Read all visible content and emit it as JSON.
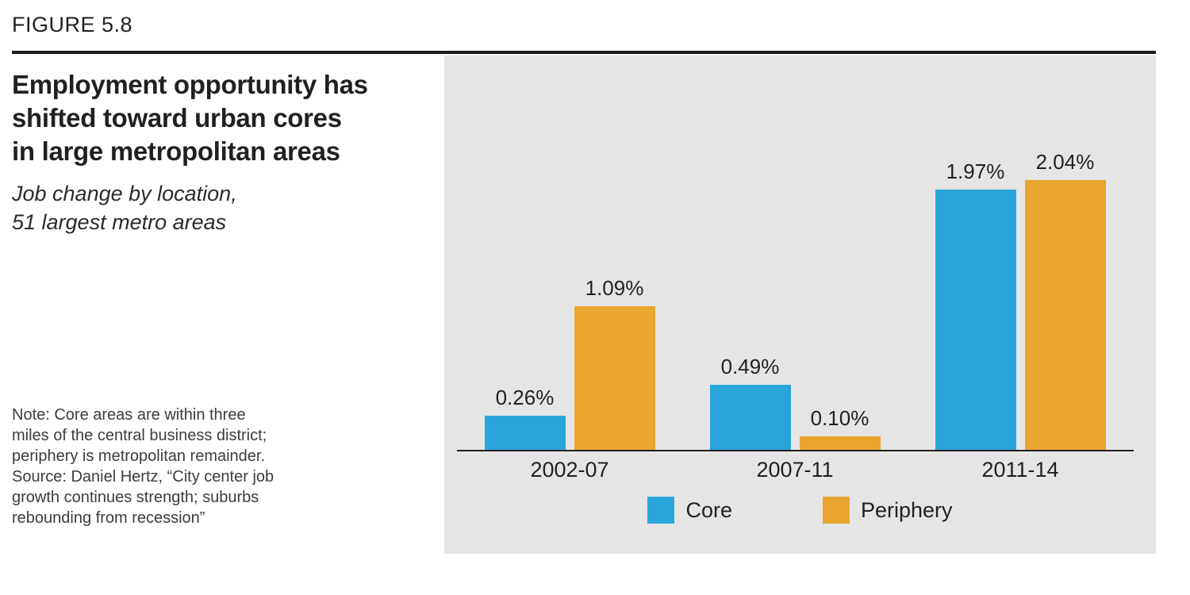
{
  "figure_label": "FIGURE 5.8",
  "title_lines": [
    "Employment opportunity has",
    "shifted toward urban cores",
    "in large metropolitan areas"
  ],
  "subtitle_lines": [
    "Job change by location,",
    "51 largest metro areas"
  ],
  "note_lines": [
    "Note: Core areas are within three",
    "miles of the central business district;",
    "periphery is metropolitan remainder.",
    "Source: Daniel Hertz, “City center job",
    "growth continues strength; suburbs",
    "rebounding from recession”"
  ],
  "chart_data": {
    "type": "bar",
    "title": "Employment opportunity has shifted toward urban cores in large metropolitan areas",
    "subtitle": "Job change by location, 51 largest metro areas",
    "categories": [
      "2002-07",
      "2007-11",
      "2011-14"
    ],
    "series": [
      {
        "name": "Core",
        "color": "#29A5DC",
        "values": [
          0.26,
          0.49,
          1.97
        ],
        "value_labels": [
          "0.26%",
          "0.49%",
          "1.97%"
        ]
      },
      {
        "name": "Periphery",
        "color": "#E9A52F",
        "values": [
          1.09,
          0.1,
          2.04
        ],
        "value_labels": [
          "1.09%",
          "0.10%",
          "2.04%"
        ]
      }
    ],
    "unit": "%",
    "ylim": [
      0,
      2.2
    ],
    "grid": false,
    "legend_position": "bottom",
    "panel_background": "#E5E5E5",
    "axis_color": "#231F20"
  }
}
